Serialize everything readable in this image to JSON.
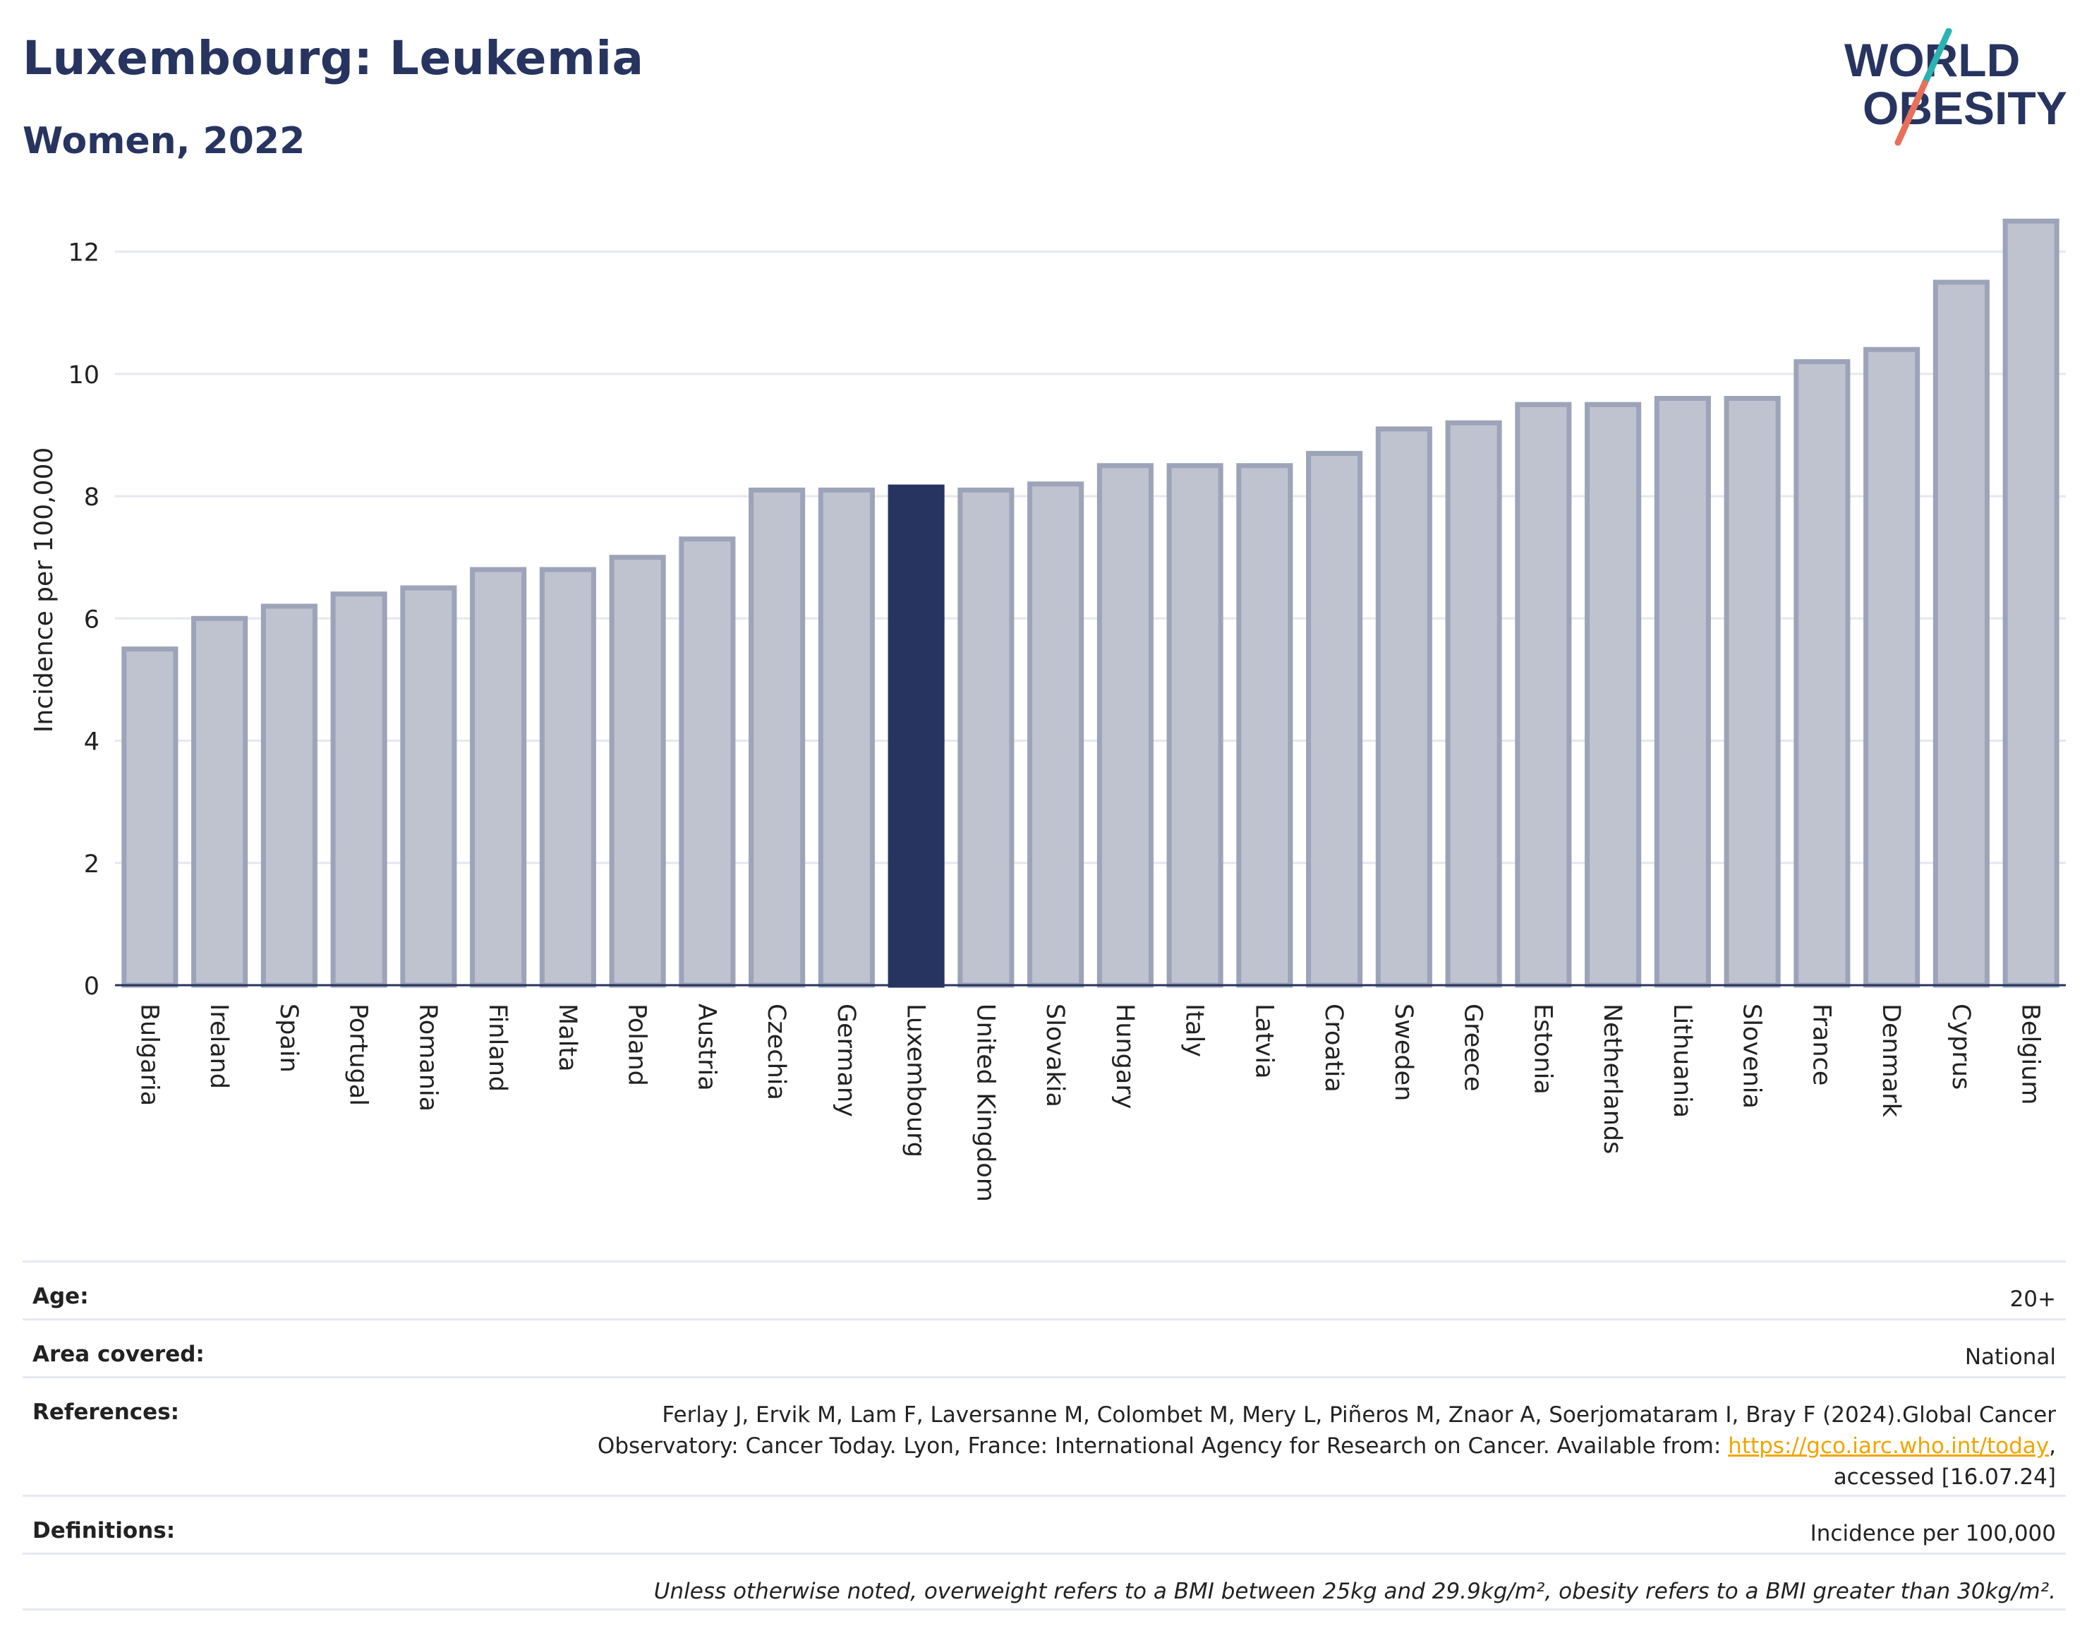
{
  "header": {
    "title": "Luxembourg: Leukemia",
    "subtitle": "Women, 2022"
  },
  "logo": {
    "line1": "WORLD",
    "line2": "OBESITY",
    "colors": {
      "navy": "#283460",
      "teal": "#2ab3b1",
      "coral": "#e8705a"
    }
  },
  "chart_data": {
    "type": "bar",
    "ylabel": "Incidence per 100,000",
    "ylim": [
      0,
      13
    ],
    "yticks": [
      0,
      2,
      4,
      6,
      8,
      10,
      12
    ],
    "grid": true,
    "highlight": "Luxembourg",
    "colors": {
      "bar": "#bfc3d0",
      "bar_border": "#9da3b8",
      "highlight": "#283460",
      "axis": "#283460",
      "grid": "#e6e8ef"
    },
    "categories": [
      "Bulgaria",
      "Ireland",
      "Spain",
      "Portugal",
      "Romania",
      "Finland",
      "Malta",
      "Poland",
      "Austria",
      "Czechia",
      "Germany",
      "Luxembourg",
      "United Kingdom",
      "Slovakia",
      "Hungary",
      "Italy",
      "Latvia",
      "Croatia",
      "Sweden",
      "Greece",
      "Estonia",
      "Netherlands",
      "Lithuania",
      "Slovenia",
      "France",
      "Denmark",
      "Cyprus",
      "Belgium"
    ],
    "values": [
      5.5,
      6.0,
      6.2,
      6.4,
      6.5,
      6.8,
      6.8,
      7.0,
      7.3,
      8.1,
      8.1,
      8.15,
      8.1,
      8.2,
      8.5,
      8.5,
      8.5,
      8.7,
      9.1,
      9.2,
      9.5,
      9.5,
      9.6,
      9.6,
      10.2,
      10.4,
      11.5,
      12.5
    ]
  },
  "info": {
    "age_label": "Age:",
    "age_value": "20+",
    "area_label": "Area covered:",
    "area_value": "National",
    "references_label": "References:",
    "references_line1": "Ferlay J, Ervik M, Lam F, Laversanne M, Colombet M, Mery L, Piñeros M, Znaor A, Soerjomataram I, Bray F (2024).Global Cancer",
    "references_line2_pre": "Observatory: Cancer Today. Lyon, France: International Agency for Research on Cancer. Available from: ",
    "references_link": "https://gco.iarc.who.int/today",
    "references_line2_post": ",",
    "references_line3": "accessed [16.07.24]",
    "definitions_label": "Definitions:",
    "definitions_value": "Incidence per 100,000",
    "note": "Unless otherwise noted, overweight refers to a BMI between 25kg and 29.9kg/m², obesity refers to a BMI greater than 30kg/m²."
  }
}
